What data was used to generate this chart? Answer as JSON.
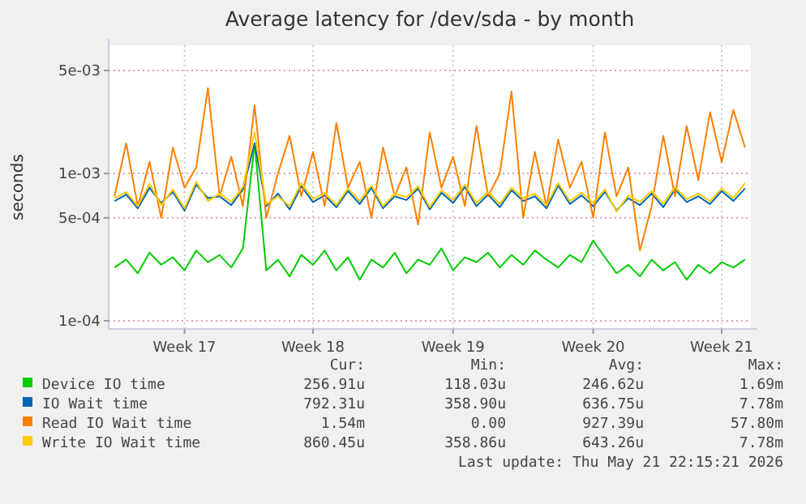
{
  "chart_data": {
    "type": "line",
    "title": "Average latency for /dev/sda - by month",
    "ylabel": "seconds",
    "log": "y",
    "grid": true,
    "legend": "bottom",
    "marker": "none",
    "line_style": "solid",
    "categories": [
      null,
      null,
      null,
      null,
      null,
      null,
      "Week 17",
      null,
      null,
      null,
      null,
      null,
      null,
      null,
      null,
      null,
      null,
      "Week 18",
      null,
      null,
      null,
      null,
      null,
      null,
      null,
      null,
      null,
      null,
      null,
      "Week 19",
      null,
      null,
      null,
      null,
      null,
      null,
      null,
      null,
      null,
      null,
      null,
      "Week 20",
      null,
      null,
      null,
      null,
      null,
      null,
      null,
      null,
      null,
      null,
      "Week 21",
      null,
      null
    ],
    "ylim": [
      8.8e-05,
      0.0074
    ],
    "yticks": [
      {
        "value": 0.0001,
        "label": "1e-04"
      },
      {
        "value": 0.0005,
        "label": "5e-04"
      },
      {
        "value": 0.001,
        "label": "1e-03"
      },
      {
        "value": 0.005,
        "label": "5e-03"
      }
    ],
    "series": [
      {
        "name": "Device IO time",
        "color": "#00cc00",
        "values": [
          0.00023,
          0.00026,
          0.00021,
          0.00029,
          0.00024,
          0.00027,
          0.00022,
          0.0003,
          0.00025,
          0.00028,
          0.00023,
          0.00031,
          0.0016,
          0.00022,
          0.00026,
          0.0002,
          0.00028,
          0.00024,
          0.0003,
          0.00022,
          0.00027,
          0.00019,
          0.00026,
          0.00023,
          0.00029,
          0.00021,
          0.00026,
          0.00024,
          0.00031,
          0.00022,
          0.00027,
          0.00025,
          0.00029,
          0.00023,
          0.00028,
          0.00024,
          0.0003,
          0.00026,
          0.00023,
          0.00028,
          0.00025,
          0.00035,
          0.00027,
          0.00021,
          0.00024,
          0.0002,
          0.00026,
          0.00022,
          0.00025,
          0.00019,
          0.00024,
          0.00021,
          0.00025,
          0.00023,
          0.00026
        ]
      },
      {
        "name": "IO Wait time",
        "color": "#0066b3",
        "values": [
          0.00065,
          0.00072,
          0.00058,
          0.0008,
          0.00063,
          0.00075,
          0.00056,
          0.00084,
          0.00068,
          0.0007,
          0.00061,
          0.00078,
          0.0016,
          0.0006,
          0.00073,
          0.00057,
          0.00082,
          0.00064,
          0.00071,
          0.00059,
          0.00076,
          0.00062,
          0.0008,
          0.00058,
          0.0007,
          0.00066,
          0.00079,
          0.00057,
          0.00074,
          0.00063,
          0.00081,
          0.0006,
          0.00072,
          0.00059,
          0.00077,
          0.00065,
          0.0007,
          0.00058,
          0.00083,
          0.00062,
          0.00071,
          0.0006,
          0.00075,
          0.00056,
          0.00068,
          0.00061,
          0.00073,
          0.00059,
          0.00078,
          0.00064,
          0.0007,
          0.00062,
          0.00076,
          0.00065,
          0.00079
        ]
      },
      {
        "name": "Read IO Wait time",
        "color": "#ff8000",
        "values": [
          0.0007,
          0.0016,
          0.0006,
          0.0012,
          0.0005,
          0.0015,
          0.0008,
          0.0011,
          0.0038,
          0.0007,
          0.0013,
          0.0006,
          0.0029,
          0.0005,
          0.001,
          0.0018,
          0.0007,
          0.0014,
          0.0006,
          0.0022,
          0.0008,
          0.0012,
          0.0005,
          0.0015,
          0.0007,
          0.0011,
          0.00045,
          0.0019,
          0.0008,
          0.0013,
          0.0006,
          0.0021,
          0.0007,
          0.001,
          0.0036,
          0.0005,
          0.0014,
          0.0006,
          0.0017,
          0.0008,
          0.0012,
          0.0005,
          0.0019,
          0.0007,
          0.0011,
          0.0003,
          0.0006,
          0.0018,
          0.0007,
          0.0021,
          0.0009,
          0.0026,
          0.0012,
          0.0027,
          0.0015
        ]
      },
      {
        "name": "Write IO Wait time",
        "color": "#ffcc00",
        "values": [
          0.00068,
          0.00075,
          0.0006,
          0.00085,
          0.00061,
          0.00078,
          0.00058,
          0.00088,
          0.00065,
          0.00073,
          0.00064,
          0.00081,
          0.0019,
          0.00062,
          0.0007,
          0.0006,
          0.00086,
          0.00067,
          0.00074,
          0.00061,
          0.00079,
          0.00065,
          0.00083,
          0.0006,
          0.00073,
          0.00069,
          0.00082,
          0.00059,
          0.00077,
          0.00066,
          0.00084,
          0.00063,
          0.00075,
          0.00062,
          0.0008,
          0.00068,
          0.00073,
          0.00061,
          0.00086,
          0.00065,
          0.00074,
          0.00063,
          0.00078,
          0.00055,
          0.00071,
          0.00064,
          0.00076,
          0.00062,
          0.00081,
          0.00067,
          0.00073,
          0.00065,
          0.00079,
          0.00068,
          0.00086
        ]
      }
    ],
    "annotations": [
      "Cur:",
      "Min:",
      "Avg:",
      "Max:",
      "256.91u",
      "118.03u",
      "246.62u",
      "1.69m",
      "792.31u",
      "358.90u",
      "636.75u",
      "7.78m",
      "1.54m",
      "0.00",
      "927.39u",
      "57.80m",
      "860.45u",
      "358.86u",
      "643.26u",
      "7.78m",
      "Last update: Thu May 21 22:15:21 2026"
    ]
  }
}
